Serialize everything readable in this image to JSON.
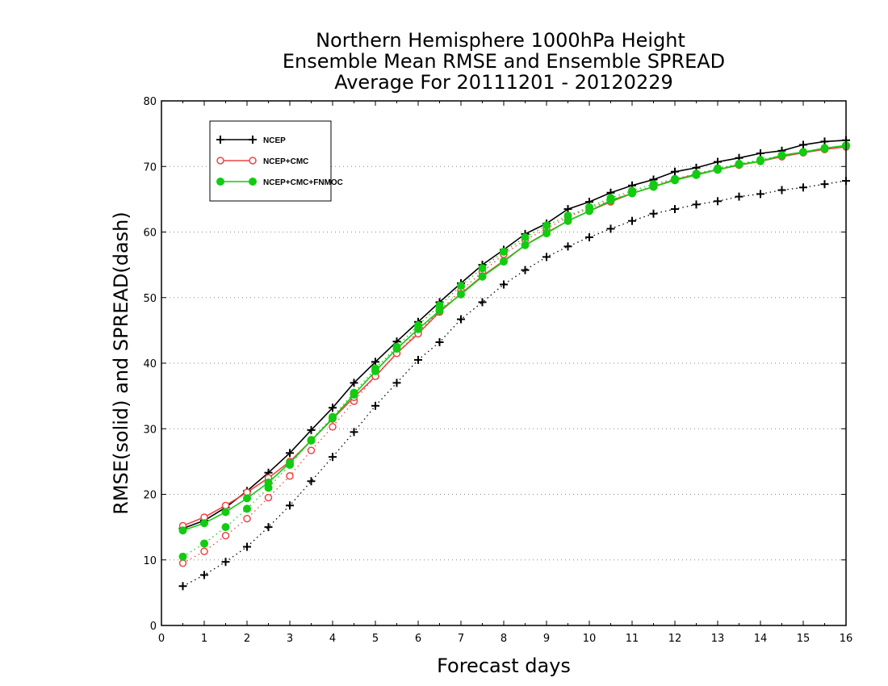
{
  "chart_data": {
    "type": "line",
    "title": [
      "Northern Hemisphere 1000hPa Height",
      "Ensemble Mean RMSE and Ensemble SPREAD",
      "Average For 20111201 - 20120229"
    ],
    "xlabel": "Forecast days",
    "ylabel": "RMSE(solid) and SPREAD(dash)",
    "xlim": [
      0,
      16
    ],
    "ylim": [
      0,
      80
    ],
    "xticks": [
      0,
      1,
      2,
      3,
      4,
      5,
      6,
      7,
      8,
      9,
      10,
      11,
      12,
      13,
      14,
      15,
      16
    ],
    "yticks": [
      0,
      10,
      20,
      30,
      40,
      50,
      60,
      70,
      80
    ],
    "grid": "horizontal dotted",
    "legend_position": "top-left",
    "x": [
      0.5,
      1,
      1.5,
      2,
      2.5,
      3,
      3.5,
      4,
      4.5,
      5,
      5.5,
      6,
      6.5,
      7,
      7.5,
      8,
      8.5,
      9,
      9.5,
      10,
      10.5,
      11,
      11.5,
      12,
      12.5,
      13,
      13.5,
      14,
      14.5,
      15,
      15.5,
      16
    ],
    "series": [
      {
        "name": "NCEP",
        "color": "#000000",
        "marker": "plus",
        "rmse": [
          14.8,
          16.0,
          18.0,
          20.5,
          23.3,
          26.3,
          29.8,
          33.2,
          37.0,
          40.2,
          43.3,
          46.3,
          49.3,
          52.2,
          55.0,
          57.3,
          59.7,
          61.3,
          63.5,
          64.6,
          66.0,
          67.1,
          68.0,
          69.2,
          69.8,
          70.7,
          71.3,
          72.0,
          72.4,
          73.3,
          73.8,
          74.0
        ],
        "spread": [
          6.0,
          7.7,
          9.7,
          12.0,
          15.0,
          18.3,
          22.0,
          25.7,
          29.5,
          33.5,
          37.0,
          40.5,
          43.2,
          46.7,
          49.3,
          52.0,
          54.2,
          56.2,
          57.8,
          59.2,
          60.5,
          61.7,
          62.8,
          63.5,
          64.2,
          64.7,
          65.4,
          65.8,
          66.4,
          66.8,
          67.3,
          67.8
        ]
      },
      {
        "name": "NCEP+CMC",
        "color": "#ee4444",
        "marker": "open-circle",
        "rmse": [
          15.2,
          16.5,
          18.3,
          20.3,
          22.5,
          25.0,
          28.2,
          31.5,
          34.8,
          38.0,
          41.5,
          44.5,
          47.8,
          50.6,
          53.3,
          55.6,
          58.0,
          59.9,
          61.7,
          63.2,
          64.6,
          65.9,
          66.9,
          68.0,
          68.8,
          69.5,
          70.2,
          70.8,
          71.5,
          72.1,
          72.6,
          73.0
        ],
        "spread": [
          9.5,
          11.3,
          13.7,
          16.3,
          19.5,
          22.8,
          26.7,
          30.3,
          34.2,
          38.0,
          41.5,
          44.8,
          48.0,
          51.1,
          53.9,
          56.6,
          58.8,
          60.5,
          62.3,
          63.6,
          64.9,
          66.0,
          67.0,
          68.0,
          68.8,
          69.6,
          70.3,
          70.9,
          71.5,
          72.1,
          72.6,
          73.0
        ]
      },
      {
        "name": "NCEP+CMC+FNMOC",
        "color": "#11cc11",
        "marker": "filled-circle",
        "rmse": [
          14.5,
          15.6,
          17.3,
          19.4,
          21.8,
          24.8,
          28.2,
          31.6,
          35.2,
          38.8,
          42.2,
          45.2,
          48.0,
          50.5,
          53.2,
          55.5,
          58.0,
          59.8,
          61.7,
          63.2,
          64.8,
          65.9,
          66.9,
          67.9,
          68.7,
          69.5,
          70.3,
          70.8,
          71.7,
          72.2,
          72.8,
          73.2
        ],
        "spread": [
          10.5,
          12.5,
          15.0,
          17.8,
          21.0,
          24.5,
          28.3,
          31.8,
          35.5,
          39.2,
          42.5,
          45.8,
          48.8,
          51.8,
          54.5,
          57.0,
          59.2,
          61.0,
          62.5,
          63.8,
          65.2,
          66.3,
          67.3,
          68.1,
          68.9,
          69.7,
          70.4,
          71.0,
          71.7,
          72.2,
          72.7,
          73.2
        ]
      }
    ]
  }
}
